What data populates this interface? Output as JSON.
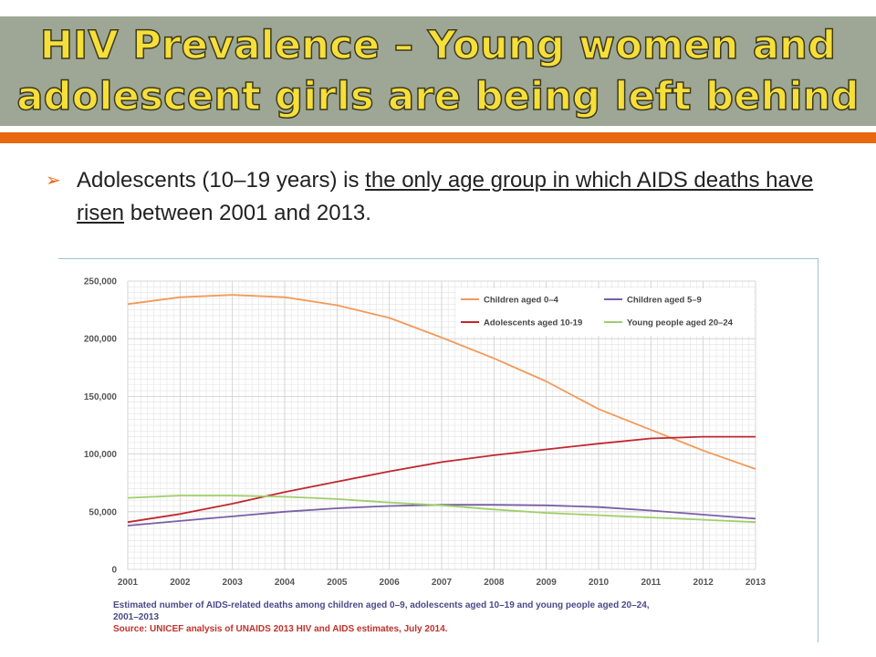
{
  "slide": {
    "title_line1": "HIV Prevalence – Young women and",
    "title_line2": "adolescent girls are being left behind",
    "bullet_part1": "Adolescents (10–19 years) is ",
    "bullet_underlined": "the only age group in which AIDS deaths have risen",
    "bullet_part2": " between 2001 and 2013.",
    "bullet_icon": "bullet-arrow-icon"
  },
  "colors": {
    "title_bar": "#9ea795",
    "title_text": "#f7df39",
    "accent_rule": "#e8680f"
  },
  "chart_data": {
    "type": "line",
    "x": [
      2001,
      2002,
      2003,
      2004,
      2005,
      2006,
      2007,
      2008,
      2009,
      2010,
      2011,
      2012,
      2013
    ],
    "ylim": [
      0,
      250000
    ],
    "yticks": [
      0,
      50000,
      100000,
      150000,
      200000,
      250000
    ],
    "ytick_labels": [
      "0",
      "50,000",
      "100,000",
      "150,000",
      "200,000",
      "250,000"
    ],
    "xtick_labels": [
      "2001",
      "2002",
      "2003",
      "2004",
      "2005",
      "2006",
      "2007",
      "2008",
      "2009",
      "2010",
      "2011",
      "2012",
      "2013"
    ],
    "grid": true,
    "legend_position": "top-right",
    "series": [
      {
        "name": "Children aged 0–4",
        "color": "#f39a5a",
        "values": [
          230000,
          236000,
          238000,
          236000,
          229000,
          218000,
          201000,
          183000,
          163000,
          139000,
          121000,
          103000,
          87000
        ]
      },
      {
        "name": "Children aged 5–9",
        "color": "#7a5fa6",
        "values": [
          38000,
          42000,
          46000,
          50000,
          53000,
          55000,
          56000,
          56000,
          55500,
          54000,
          51000,
          47500,
          44000
        ]
      },
      {
        "name": "Adolescents aged 10-19",
        "color": "#c0282d",
        "values": [
          41000,
          48000,
          57000,
          67000,
          76000,
          85000,
          93000,
          99000,
          104000,
          109000,
          113500,
          115000,
          115000
        ]
      },
      {
        "name": "Young people aged 20–24",
        "color": "#9fcf6a",
        "values": [
          62000,
          64000,
          64000,
          63000,
          61000,
          58000,
          55500,
          52000,
          49000,
          47000,
          45000,
          43000,
          41000
        ]
      }
    ],
    "caption_line1": "Estimated number of AIDS-related deaths among children aged 0–9, adolescents aged 10–19 and young people aged 20–24,",
    "caption_line2": "2001–2013",
    "source": "Source: UNICEF analysis of UNAIDS 2013 HIV and AIDS estimates, July 2014."
  }
}
